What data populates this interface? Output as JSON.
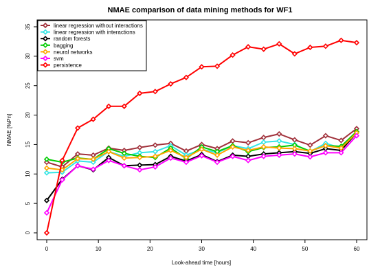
{
  "chart_data": {
    "type": "line",
    "title": "NMAE comparison of data mining methods for WF1",
    "xlabel": "Look-ahead time [hours]",
    "ylabel": "NMAE [%Pn]",
    "xlim": [
      0,
      60
    ],
    "ylim": [
      0,
      35
    ],
    "xticks": [
      0,
      10,
      20,
      30,
      40,
      50,
      60
    ],
    "yticks": [
      0,
      5,
      10,
      15,
      20,
      25,
      30,
      35
    ],
    "grid": false,
    "legend_position": "top-left",
    "x": [
      0,
      3,
      6,
      9,
      12,
      15,
      18,
      21,
      24,
      27,
      30,
      33,
      36,
      39,
      42,
      45,
      48,
      51,
      54,
      57,
      60
    ],
    "series": [
      {
        "name": "linear regression without interactions",
        "color": "#a0303a",
        "values": [
          12.0,
          11.2,
          13.4,
          13.2,
          14.4,
          14.0,
          14.5,
          14.9,
          15.2,
          13.9,
          15.0,
          14.3,
          15.6,
          15.3,
          16.2,
          16.8,
          15.8,
          14.9,
          16.5,
          15.7,
          17.7
        ]
      },
      {
        "name": "linear regression with interactions",
        "color": "#33e5e5",
        "values": [
          10.2,
          10.3,
          12.2,
          12.0,
          13.8,
          13.0,
          13.6,
          13.8,
          14.8,
          13.2,
          14.2,
          13.6,
          14.8,
          14.3,
          15.4,
          15.6,
          15.0,
          13.8,
          15.2,
          14.4,
          17.0
        ]
      },
      {
        "name": "random forests",
        "color": "#000000",
        "values": [
          5.5,
          9.1,
          11.4,
          10.7,
          12.8,
          11.4,
          11.5,
          11.6,
          13.0,
          12.2,
          13.3,
          12.1,
          13.2,
          13.0,
          13.4,
          13.6,
          13.8,
          13.5,
          14.3,
          14.0,
          17.0
        ]
      },
      {
        "name": "bagging",
        "color": "#00cc00",
        "values": [
          12.5,
          12.0,
          12.7,
          12.5,
          14.3,
          13.5,
          13.0,
          12.8,
          14.4,
          12.6,
          14.6,
          13.8,
          14.8,
          13.8,
          14.5,
          14.6,
          14.9,
          13.9,
          14.8,
          14.7,
          17.2
        ]
      },
      {
        "name": "neural networks",
        "color": "#ffa500",
        "values": [
          11.0,
          10.7,
          12.6,
          12.5,
          13.8,
          12.7,
          12.8,
          13.0,
          14.0,
          12.8,
          14.2,
          13.2,
          14.6,
          14.0,
          14.6,
          14.4,
          14.3,
          13.9,
          14.8,
          14.4,
          17.0
        ]
      },
      {
        "name": "svm",
        "color": "#ff00ff",
        "values": [
          3.4,
          9.0,
          11.4,
          10.8,
          12.3,
          11.4,
          10.7,
          11.2,
          12.7,
          12.0,
          13.1,
          12.0,
          13.0,
          12.3,
          13.0,
          13.2,
          13.4,
          12.9,
          13.6,
          13.6,
          16.5
        ]
      },
      {
        "name": "persistence",
        "color": "#ff0000",
        "values": [
          0.0,
          12.3,
          17.8,
          19.3,
          21.5,
          21.5,
          23.7,
          24.0,
          25.3,
          26.4,
          28.2,
          28.3,
          30.2,
          31.6,
          31.2,
          32.1,
          30.4,
          31.5,
          31.7,
          32.7,
          32.3
        ]
      }
    ]
  }
}
